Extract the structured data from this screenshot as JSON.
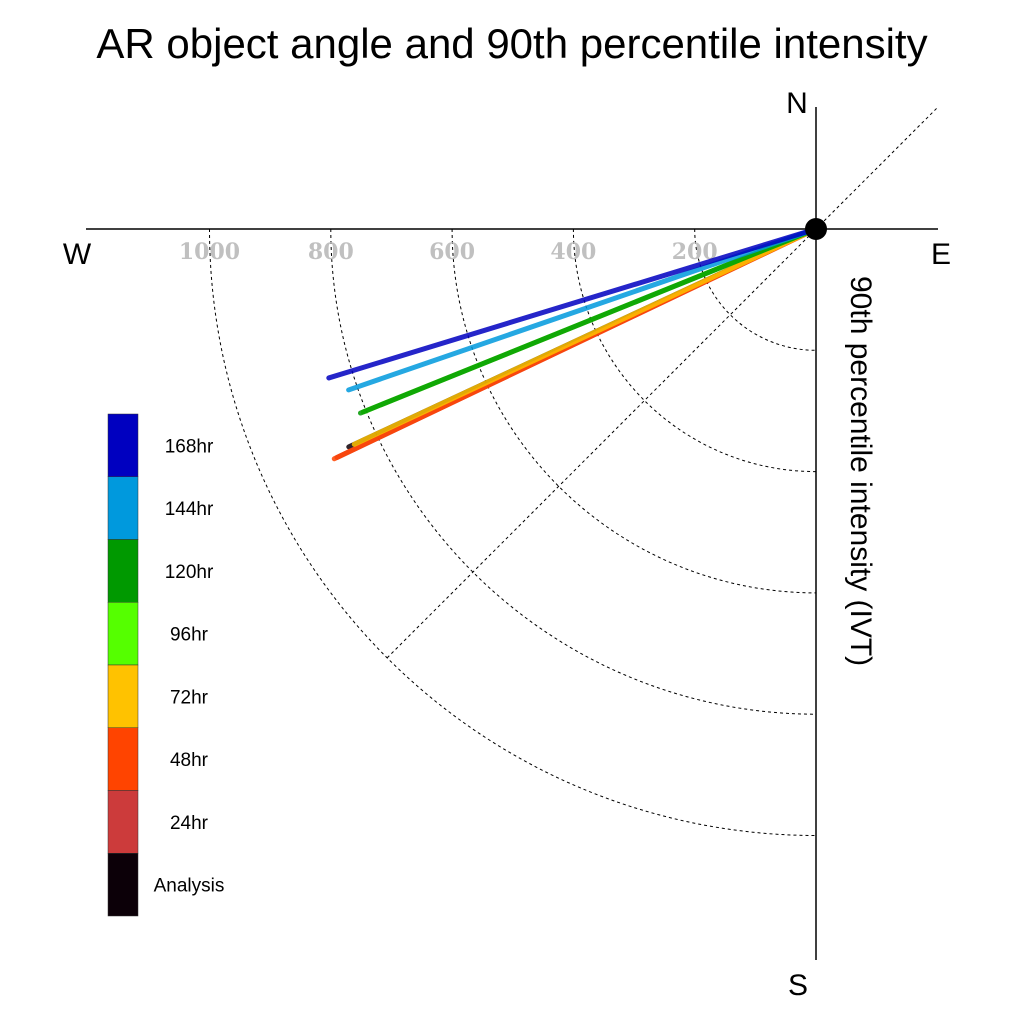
{
  "chart_data": {
    "type": "polar-vector",
    "title": "AR object angle and 90th percentile intensity",
    "ylabel": "90th percentile intensity (IVT)",
    "compass": {
      "north": "N",
      "south": "S",
      "east": "E",
      "west": "W"
    },
    "radial_ticks": [
      "200",
      "400",
      "600",
      "800",
      "1000"
    ],
    "rmax": 1000,
    "series": [
      {
        "name": "168hr",
        "color": "#0000c0",
        "angle_deg": 197,
        "intensity": 840
      },
      {
        "name": "144hr",
        "color": "#0099dd",
        "angle_deg": 199,
        "intensity": 815
      },
      {
        "name": "120hr",
        "color": "#009900",
        "angle_deg": 202,
        "intensity": 810
      },
      {
        "name": "96hr",
        "color": "#55ff00",
        "angle_deg": 202,
        "intensity": 805
      },
      {
        "name": "72hr",
        "color": "#ffc200",
        "angle_deg": 205,
        "intensity": 840
      },
      {
        "name": "48hr",
        "color": "#ff4400",
        "angle_deg": 205.5,
        "intensity": 880
      },
      {
        "name": "24hr",
        "color": "#cc3b3b",
        "angle_deg": 205.5,
        "intensity": 875
      },
      {
        "name": "Analysis",
        "color": "#0c0008",
        "angle_deg": 205,
        "intensity": 850
      }
    ]
  }
}
